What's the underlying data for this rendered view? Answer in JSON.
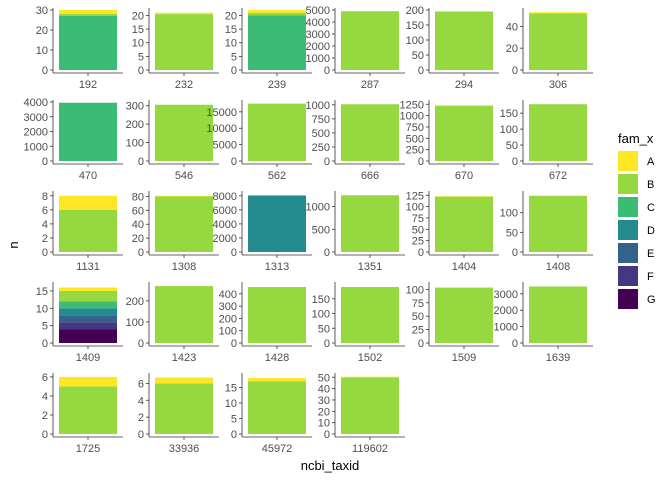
{
  "chart_data": {
    "type": "bar",
    "subtype": "faceted-stacked",
    "xlabel": "ncbi_taxid",
    "ylabel": "n",
    "legend": {
      "title": "fam_x",
      "position": "right",
      "categories": [
        "A",
        "B",
        "C",
        "D",
        "E",
        "F",
        "G"
      ],
      "colors": [
        "#FDE725",
        "#95D840",
        "#3CBB75",
        "#238A8D",
        "#33638D",
        "#453781",
        "#440154"
      ]
    },
    "grid": false,
    "facets": [
      {
        "label": "192",
        "ylim": [
          0,
          30
        ],
        "yticks": [
          0,
          10,
          20,
          30
        ],
        "segments": {
          "C": 27,
          "B": 1,
          "A": 2
        }
      },
      {
        "label": "232",
        "ylim": [
          0,
          22
        ],
        "yticks": [
          0,
          5,
          10,
          15,
          20
        ],
        "segments": {
          "B": 20.5,
          "A": 0.5
        }
      },
      {
        "label": "239",
        "ylim": [
          0,
          22
        ],
        "yticks": [
          0,
          5,
          10,
          15,
          20
        ],
        "segments": {
          "C": 20,
          "B": 1,
          "A": 1
        }
      },
      {
        "label": "287",
        "ylim": [
          0,
          5000
        ],
        "yticks": [
          0,
          1000,
          2000,
          3000,
          4000,
          5000
        ],
        "segments": {
          "B": 4900
        }
      },
      {
        "label": "294",
        "ylim": [
          0,
          200
        ],
        "yticks": [
          0,
          50,
          100,
          150,
          200
        ],
        "segments": {
          "B": 195
        }
      },
      {
        "label": "306",
        "ylim": [
          0,
          55
        ],
        "yticks": [
          0,
          20,
          40
        ],
        "segments": {
          "B": 52,
          "A": 1
        }
      },
      {
        "label": "470",
        "ylim": [
          0,
          4000
        ],
        "yticks": [
          0,
          1000,
          2000,
          3000,
          4000
        ],
        "segments": {
          "C": 3950
        }
      },
      {
        "label": "546",
        "ylim": [
          0,
          320
        ],
        "yticks": [
          0,
          100,
          200,
          300
        ],
        "segments": {
          "B": 305
        }
      },
      {
        "label": "562",
        "ylim": [
          0,
          18000
        ],
        "yticks": [
          0,
          5000,
          10000,
          15000
        ],
        "segments": {
          "B": 17500
        }
      },
      {
        "label": "666",
        "ylim": [
          0,
          1050
        ],
        "yticks": [
          0,
          250,
          500,
          750,
          1000
        ],
        "segments": {
          "B": 1010
        }
      },
      {
        "label": "670",
        "ylim": [
          0,
          1300
        ],
        "yticks": [
          0,
          250,
          500,
          750,
          1000,
          1250
        ],
        "segments": {
          "B": 1220
        }
      },
      {
        "label": "672",
        "ylim": [
          0,
          185
        ],
        "yticks": [
          0,
          50,
          100,
          150
        ],
        "segments": {
          "B": 178
        }
      },
      {
        "label": "1131",
        "ylim": [
          0,
          8.4
        ],
        "yticks": [
          0,
          2,
          4,
          6,
          8
        ],
        "segments": {
          "B": 6,
          "A": 2
        }
      },
      {
        "label": "1308",
        "ylim": [
          0,
          85
        ],
        "yticks": [
          0,
          20,
          40,
          60,
          80
        ],
        "segments": {
          "B": 80,
          "A": 1
        }
      },
      {
        "label": "1313",
        "ylim": [
          0,
          8400
        ],
        "yticks": [
          0,
          2000,
          4000,
          6000,
          8000
        ],
        "segments": {
          "D": 8050
        }
      },
      {
        "label": "1351",
        "ylim": [
          0,
          1300
        ],
        "yticks": [
          0,
          500,
          1000
        ],
        "segments": {
          "B": 1250
        }
      },
      {
        "label": "1404",
        "ylim": [
          0,
          130
        ],
        "yticks": [
          0,
          25,
          50,
          75,
          100,
          125
        ],
        "segments": {
          "B": 122,
          "A": 1
        }
      },
      {
        "label": "1408",
        "ylim": [
          0,
          150
        ],
        "yticks": [
          0,
          50,
          100
        ],
        "segments": {
          "B": 143
        }
      },
      {
        "label": "1409",
        "ylim": [
          0,
          17
        ],
        "yticks": [
          0,
          5,
          10,
          15
        ],
        "segments": {
          "G": 4,
          "F": 2,
          "E": 2,
          "D": 2,
          "C": 2,
          "B": 3,
          "A": 1
        }
      },
      {
        "label": "1423",
        "ylim": [
          0,
          280
        ],
        "yticks": [
          0,
          100,
          200
        ],
        "segments": {
          "B": 270
        }
      },
      {
        "label": "1428",
        "ylim": [
          0,
          480
        ],
        "yticks": [
          0,
          100,
          200,
          300,
          400
        ],
        "segments": {
          "B": 455
        }
      },
      {
        "label": "1502",
        "ylim": [
          0,
          200
        ],
        "yticks": [
          0,
          50,
          100,
          150
        ],
        "segments": {
          "B": 190
        }
      },
      {
        "label": "1509",
        "ylim": [
          0,
          110
        ],
        "yticks": [
          0,
          25,
          50,
          75,
          100
        ],
        "segments": {
          "B": 103,
          "A": 1
        }
      },
      {
        "label": "1639",
        "ylim": [
          0,
          3600
        ],
        "yticks": [
          0,
          1000,
          2000,
          3000
        ],
        "segments": {
          "B": 3450
        }
      },
      {
        "label": "1725",
        "ylim": [
          0,
          6.2
        ],
        "yticks": [
          0,
          2,
          4,
          6
        ],
        "segments": {
          "B": 5,
          "A": 1
        }
      },
      {
        "label": "33936",
        "ylim": [
          0,
          7
        ],
        "yticks": [
          0,
          2,
          4,
          6
        ],
        "segments": {
          "B": 6,
          "A": 0.7
        }
      },
      {
        "label": "45972",
        "ylim": [
          0,
          19
        ],
        "yticks": [
          0,
          5,
          10,
          15
        ],
        "segments": {
          "B": 17,
          "A": 1
        }
      },
      {
        "label": "119602",
        "ylim": [
          0,
          52
        ],
        "yticks": [
          0,
          10,
          20,
          30,
          40,
          50
        ],
        "segments": {
          "B": 50,
          "A": 0.5
        }
      }
    ]
  }
}
